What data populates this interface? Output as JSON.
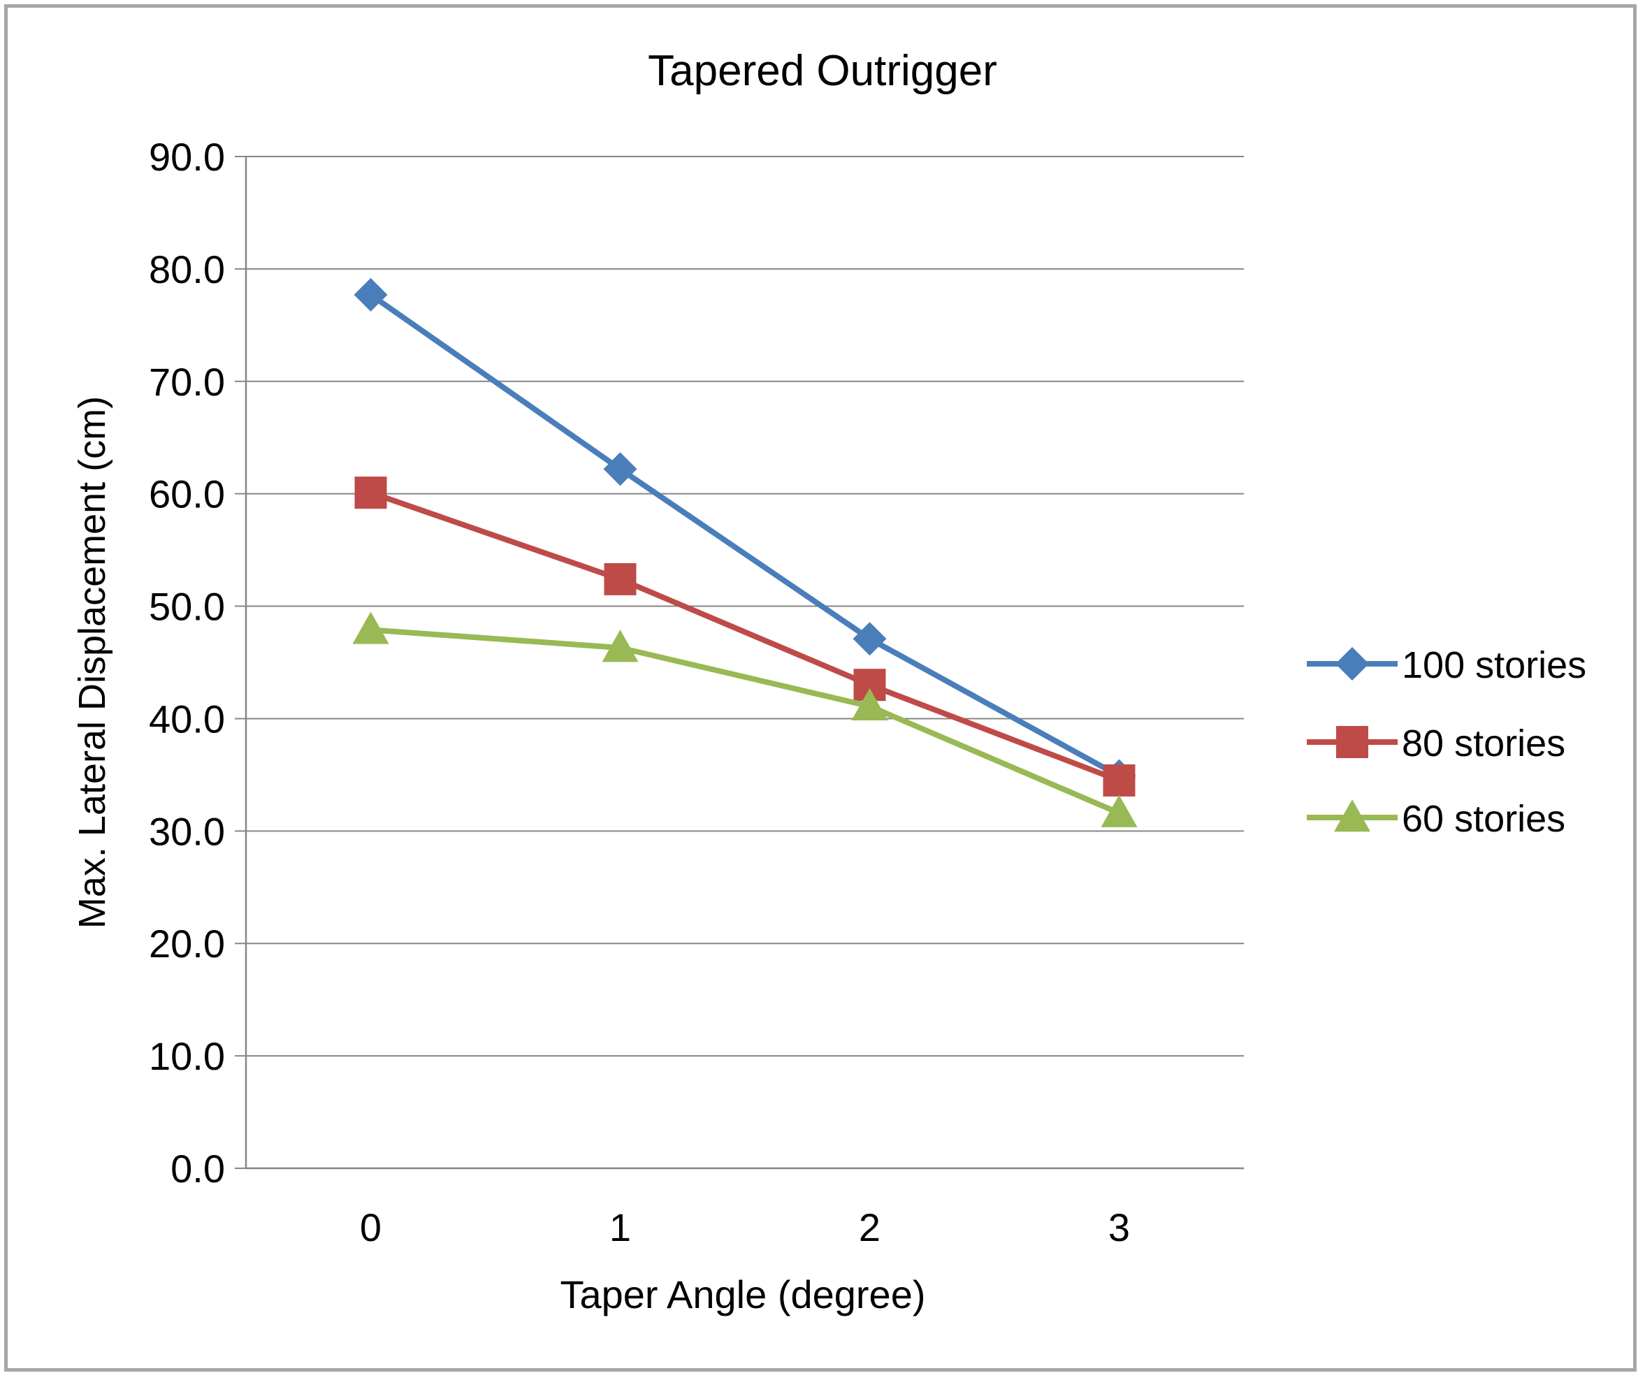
{
  "chart_data": {
    "type": "line",
    "title": "Tapered Outrigger",
    "xlabel": "Taper Angle (degree)",
    "ylabel": "Max. Lateral Displacement (cm)",
    "categories": [
      "0",
      "1",
      "2",
      "3"
    ],
    "y_ticks": [
      "0.0",
      "10.0",
      "20.0",
      "30.0",
      "40.0",
      "50.0",
      "60.0",
      "70.0",
      "80.0",
      "90.0"
    ],
    "ylim": [
      0,
      90
    ],
    "grid": true,
    "legend_position": "right",
    "series": [
      {
        "name": "100 stories",
        "values": [
          77.7,
          62.2,
          47.1,
          34.9
        ],
        "color": "#4a7ebb",
        "marker": "diamond"
      },
      {
        "name": "80 stories",
        "values": [
          60.1,
          52.4,
          43.0,
          34.5
        ],
        "color": "#be4b48",
        "marker": "square"
      },
      {
        "name": "60 stories",
        "values": [
          47.9,
          46.3,
          41.1,
          31.6
        ],
        "color": "#98b954",
        "marker": "triangle"
      }
    ]
  }
}
